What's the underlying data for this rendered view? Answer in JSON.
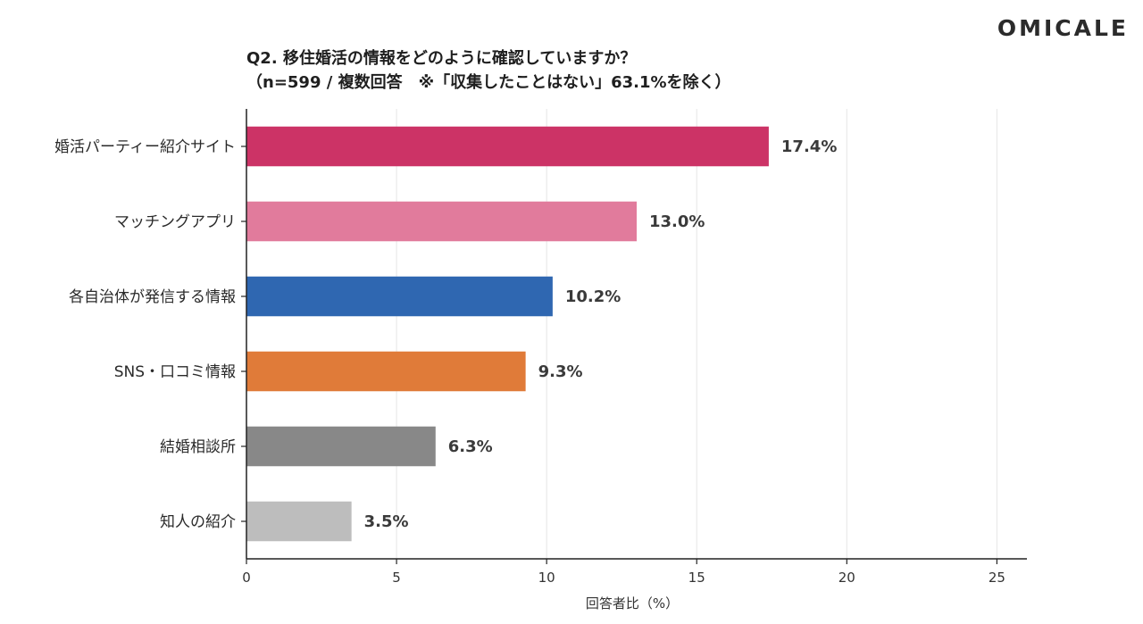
{
  "brand": {
    "name": "OMICALE"
  },
  "chart_data": {
    "type": "bar",
    "orientation": "horizontal",
    "title": "Q2. 移住婚活の情報をどのように確認していますか？",
    "subtitle": "（n=599 / 複数回答　※「収集したことはない」63.1%を除く）",
    "categories": [
      "婚活パーティー紹介サイト",
      "マッチングアプリ",
      "各自治体が発信する情報",
      "SNS・口コミ情報",
      "結婚相談所",
      "知人の紹介"
    ],
    "values": [
      17.4,
      13.0,
      10.2,
      9.3,
      6.3,
      3.5
    ],
    "value_labels": [
      "17.4%",
      "13.0%",
      "10.2%",
      "9.3%",
      "6.3%",
      "3.5%"
    ],
    "colors": [
      "#cc3366",
      "#e17b9c",
      "#2f67b1",
      "#e07b39",
      "#888888",
      "#bdbdbd"
    ],
    "xlabel": "回答者比（%）",
    "ylabel": "",
    "xlim": [
      0,
      26
    ],
    "xticks": [
      0,
      5,
      10,
      15,
      20,
      25
    ],
    "xtick_labels": [
      "0",
      "5",
      "10",
      "15",
      "20",
      "25"
    ],
    "grid": "vertical",
    "legend": "none"
  }
}
